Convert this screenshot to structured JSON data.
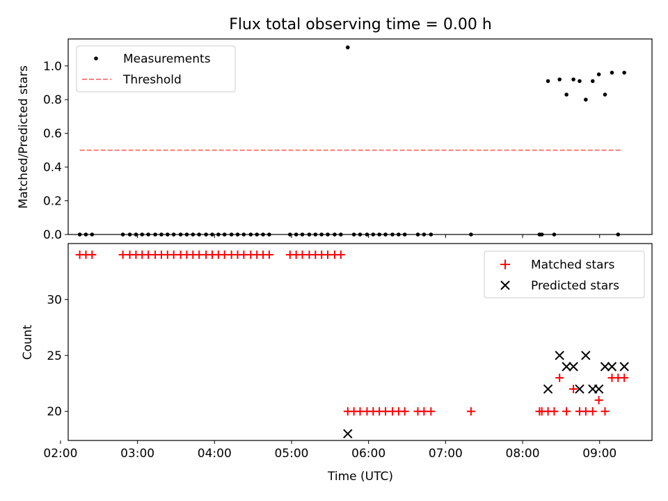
{
  "chart_data": [
    {
      "type": "scatter",
      "title": "Flux total observing time = 0.00 h",
      "ylabel": "Matched/Predicted stars",
      "xlabel": "",
      "ylim": [
        0,
        1.16
      ],
      "xlim": [
        2.1,
        9.68
      ],
      "yticks": [
        0.0,
        0.2,
        0.4,
        0.6,
        0.8,
        1.0
      ],
      "ytick_labels": [
        "0.0",
        "0.2",
        "0.4",
        "0.6",
        "0.8",
        "1.0"
      ],
      "legend": {
        "placement": "top-left",
        "entries": [
          "Measurements",
          "Threshold"
        ]
      },
      "series": [
        {
          "name": "Measurements",
          "kind": "scatter",
          "color": "#000000",
          "x": [
            2.25,
            2.33,
            2.41,
            2.81,
            2.9,
            2.98,
            3.06,
            3.14,
            3.23,
            3.31,
            3.39,
            3.47,
            3.56,
            3.64,
            3.72,
            3.8,
            3.89,
            3.97,
            4.05,
            4.13,
            4.22,
            4.3,
            4.38,
            4.47,
            4.55,
            4.63,
            4.71,
            4.98,
            5.06,
            5.14,
            5.23,
            5.31,
            5.39,
            5.47,
            5.56,
            5.64,
            5.73,
            5.81,
            5.89,
            5.98,
            6.06,
            6.14,
            6.22,
            6.31,
            6.39,
            6.47,
            6.64,
            6.72,
            6.81,
            7.33,
            8.22,
            8.25,
            8.41,
            8.33,
            8.48,
            8.57,
            8.66,
            8.74,
            8.82,
            8.91,
            8.99,
            9.07,
            9.16,
            9.24,
            9.32
          ],
          "y": [
            0,
            0,
            0,
            0,
            0,
            0,
            0,
            0,
            0,
            0,
            0,
            0,
            0,
            0,
            0,
            0,
            0,
            0,
            0,
            0,
            0,
            0,
            0,
            0,
            0,
            0,
            0,
            0,
            0,
            0,
            0,
            0,
            0,
            0,
            0,
            0,
            1.11,
            0,
            0,
            0,
            0,
            0,
            0,
            0,
            0,
            0,
            0,
            0,
            0,
            0,
            0,
            0,
            0,
            0.91,
            0.92,
            0.83,
            0.92,
            0.91,
            0.8,
            0.91,
            0.95,
            0.83,
            0.96,
            0.0,
            0.96
          ]
        },
        {
          "name": "Threshold",
          "kind": "line",
          "color": "#ff7f7f",
          "dashed": true,
          "x": [
            2.25,
            9.3
          ],
          "y": [
            0.5,
            0.5
          ]
        }
      ]
    },
    {
      "type": "scatter",
      "title": "",
      "ylabel": "Count",
      "xlabel": "Time (UTC)",
      "ylim": [
        17.4,
        35.0
      ],
      "xlim": [
        2.1,
        9.68
      ],
      "yticks": [
        20,
        25,
        30
      ],
      "ytick_labels": [
        "20",
        "25",
        "30"
      ],
      "xticks": [
        2,
        3,
        4,
        5,
        6,
        7,
        8,
        9
      ],
      "xtick_labels": [
        "02:00",
        "03:00",
        "04:00",
        "05:00",
        "06:00",
        "07:00",
        "08:00",
        "09:00"
      ],
      "legend": {
        "placement": "top-right",
        "entries": [
          "Matched stars",
          "Predicted stars"
        ]
      },
      "series": [
        {
          "name": "Matched stars",
          "kind": "plus",
          "color": "#ff0000",
          "x": [
            2.25,
            2.33,
            2.41,
            2.81,
            2.9,
            2.98,
            3.06,
            3.14,
            3.23,
            3.31,
            3.39,
            3.47,
            3.56,
            3.64,
            3.72,
            3.8,
            3.89,
            3.97,
            4.05,
            4.13,
            4.22,
            4.3,
            4.38,
            4.47,
            4.55,
            4.63,
            4.71,
            4.98,
            5.06,
            5.14,
            5.23,
            5.31,
            5.39,
            5.47,
            5.56,
            5.64,
            5.73,
            5.81,
            5.89,
            5.98,
            6.06,
            6.14,
            6.22,
            6.31,
            6.39,
            6.47,
            6.64,
            6.72,
            6.81,
            7.33,
            8.22,
            8.25,
            8.33,
            8.41,
            8.48,
            8.57,
            8.66,
            8.74,
            8.82,
            8.91,
            8.99,
            9.07,
            9.16,
            9.24,
            9.32
          ],
          "y": [
            34,
            34,
            34,
            34,
            34,
            34,
            34,
            34,
            34,
            34,
            34,
            34,
            34,
            34,
            34,
            34,
            34,
            34,
            34,
            34,
            34,
            34,
            34,
            34,
            34,
            34,
            34,
            34,
            34,
            34,
            34,
            34,
            34,
            34,
            34,
            34,
            20,
            20,
            20,
            20,
            20,
            20,
            20,
            20,
            20,
            20,
            20,
            20,
            20,
            20,
            20,
            20,
            20,
            20,
            23,
            20,
            22,
            20,
            20,
            20,
            21,
            20,
            23,
            23,
            23
          ]
        },
        {
          "name": "Predicted stars",
          "kind": "x",
          "color": "#000000",
          "x": [
            5.73,
            8.33,
            8.48,
            8.57,
            8.66,
            8.74,
            8.82,
            8.91,
            8.99,
            9.07,
            9.16,
            9.32
          ],
          "y": [
            18,
            22,
            25,
            24,
            24,
            22,
            25,
            22,
            22,
            24,
            24,
            24
          ]
        }
      ]
    }
  ]
}
